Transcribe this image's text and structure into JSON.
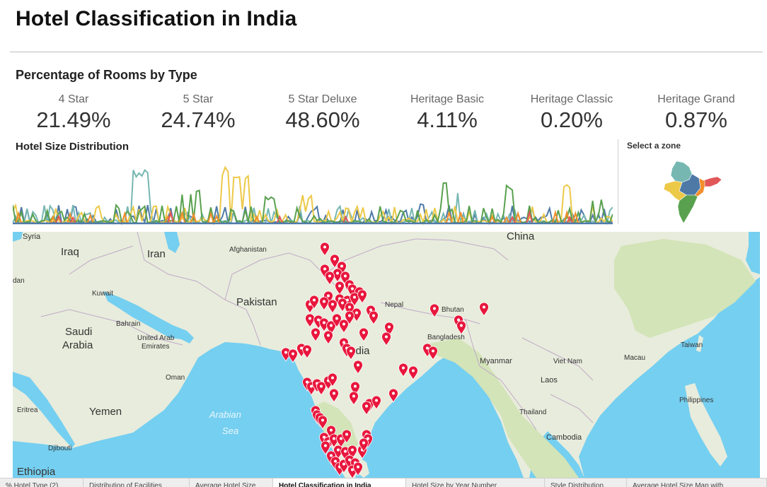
{
  "dashboard": {
    "title": "Hotel Classification in India"
  },
  "kpis": {
    "title": "Percentage of Rooms by Type",
    "items": [
      {
        "label": "4 Star",
        "value": "21.49%"
      },
      {
        "label": "5 Star",
        "value": "24.74%"
      },
      {
        "label": "5 Star Deluxe",
        "value": "48.60%"
      },
      {
        "label": "Heritage Basic",
        "value": "4.11%"
      },
      {
        "label": "Heritage Classic",
        "value": "0.20%"
      },
      {
        "label": "Heritage Grand",
        "value": "0.87%"
      }
    ]
  },
  "size_distribution": {
    "title": "Hotel Size Distribution",
    "colors": [
      "#4e79a7",
      "#76b7b2",
      "#edc948",
      "#59a14f",
      "#f28e2b",
      "#e15759"
    ]
  },
  "zone_selector": {
    "title": "Select  a zone",
    "zone_colors": [
      "#76b7b2",
      "#4e79a7",
      "#e15759",
      "#f28e2b",
      "#edc948",
      "#59a14f"
    ]
  },
  "map": {
    "labels": {
      "china": "China",
      "syria": "Syria",
      "iraq": "Iraq",
      "iran": "Iran",
      "afghanistan": "Afghanistan",
      "pakistan": "Pakistan",
      "kuwait": "Kuwait",
      "bahrain": "Bahrain",
      "saudi": "Saudi\nArabia",
      "uae": "United Arab\nEmirates",
      "qatar_dan": "dan",
      "oman": "Oman",
      "yemen": "Yemen",
      "eritrea": "Eritrea",
      "djibouti": "Djibouti",
      "ethiopia": "Ethiopia",
      "nepal": "Nepal",
      "bhutan": "Bhutan",
      "bangladesh": "Bangladesh",
      "india": "India",
      "myanmar": "Myanmar",
      "vietnam": "Viet Nam",
      "laos": "Laos",
      "thailand": "Thailand",
      "cambodia": "Cambodia",
      "taiwan": "Taiwan",
      "macau": "Macau",
      "philippines": "Philippines",
      "arabian_sea": "Arabian\nSea"
    },
    "marker_color": "#e8173d"
  },
  "tabs": [
    {
      "label": "% Hotel Type (2)",
      "active": false
    },
    {
      "label": "Distribution of Facilities",
      "active": false
    },
    {
      "label": "Average Hotel Size",
      "active": false
    },
    {
      "label": "Hotel Classification in India",
      "active": true
    },
    {
      "label": "Hotel Size by Year Number",
      "active": false
    },
    {
      "label": "Style Distribution",
      "active": false
    },
    {
      "label": "Average Hotel Size Map with",
      "active": false
    }
  ]
}
